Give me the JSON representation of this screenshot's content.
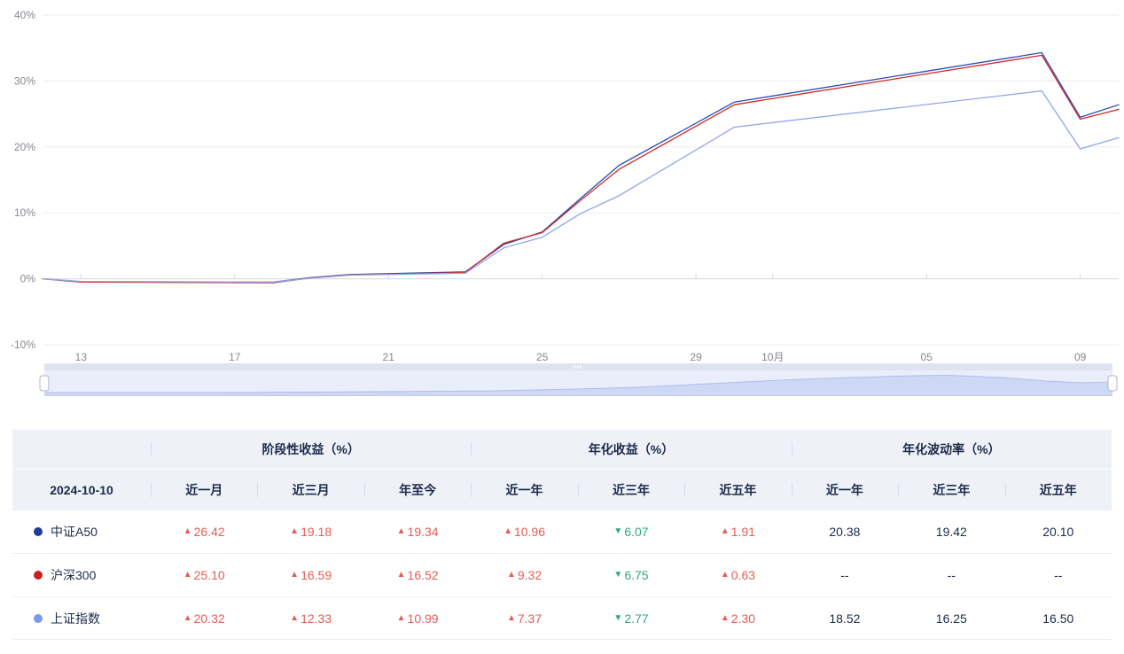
{
  "chart_data": {
    "type": "line",
    "title": "",
    "x": [
      "09-12",
      "09-13",
      "09-18",
      "09-19",
      "09-20",
      "09-23",
      "09-24",
      "09-25",
      "09-26",
      "09-27",
      "09-30",
      "10-08",
      "10-09",
      "10-10"
    ],
    "x_day_offsets": [
      0,
      1,
      6,
      7,
      8,
      11,
      12,
      13,
      14,
      15,
      18,
      26,
      27,
      28
    ],
    "series": [
      {
        "name": "中证A50",
        "color": "#2b4bb5",
        "values": [
          0,
          -0.45,
          -0.5,
          0.2,
          0.65,
          1.05,
          5.2,
          7.1,
          12.2,
          17.2,
          26.8,
          34.3,
          24.5,
          26.4
        ]
      },
      {
        "name": "沪深300",
        "color": "#cc2a25",
        "values": [
          0,
          -0.5,
          -0.6,
          0.15,
          0.6,
          0.95,
          5.4,
          7.0,
          11.9,
          16.6,
          26.4,
          33.9,
          24.2,
          25.7
        ]
      },
      {
        "name": "上证指数",
        "color": "#8fa6ec",
        "values": [
          0,
          -0.4,
          -0.5,
          0.1,
          0.55,
          0.85,
          4.7,
          6.3,
          9.9,
          12.6,
          23.0,
          28.5,
          19.7,
          21.4
        ]
      }
    ],
    "ylim": [
      -10,
      40
    ],
    "grid": true,
    "legend_position": "table-below",
    "y_ticks": [
      {
        "label": "40%",
        "value": 40
      },
      {
        "label": "30%",
        "value": 30
      },
      {
        "label": "20%",
        "value": 20
      },
      {
        "label": "10%",
        "value": 10
      },
      {
        "label": "0%",
        "value": 0
      },
      {
        "label": "-10%",
        "value": -10
      }
    ],
    "x_ticks": [
      {
        "label": "13",
        "day": 1
      },
      {
        "label": "17",
        "day": 5
      },
      {
        "label": "21",
        "day": 9
      },
      {
        "label": "25",
        "day": 13
      },
      {
        "label": "29",
        "day": 17
      },
      {
        "label": "10月",
        "day": 19
      },
      {
        "label": "05",
        "day": 23
      },
      {
        "label": "09",
        "day": 27
      }
    ]
  },
  "slider": {
    "shadow_profile": [
      [
        50,
        3
      ],
      [
        250,
        3
      ],
      [
        420,
        4
      ],
      [
        560,
        5
      ],
      [
        650,
        7
      ],
      [
        720,
        9
      ],
      [
        800,
        13
      ],
      [
        880,
        17
      ],
      [
        960,
        20
      ],
      [
        1030,
        22
      ],
      [
        1070,
        22.5
      ],
      [
        1130,
        20
      ],
      [
        1180,
        16
      ],
      [
        1220,
        14
      ],
      [
        1255,
        15
      ]
    ]
  },
  "table": {
    "date_header": "2024-10-10",
    "groups": [
      {
        "label": "阶段性收益（%）",
        "span": 3
      },
      {
        "label": "年化收益（%）",
        "span": 3
      },
      {
        "label": "年化波动率（%）",
        "span": 3
      }
    ],
    "columns": [
      "近一月",
      "近三月",
      "年至今",
      "近一年",
      "近三年",
      "近五年",
      "近一年",
      "近三年",
      "近五年"
    ],
    "rows": [
      {
        "name": "中证A50",
        "dot_color": "#1e3d96",
        "cells": [
          {
            "text": "26.42",
            "dir": "up"
          },
          {
            "text": "19.18",
            "dir": "up"
          },
          {
            "text": "19.34",
            "dir": "up"
          },
          {
            "text": "10.96",
            "dir": "up"
          },
          {
            "text": "6.07",
            "dir": "down"
          },
          {
            "text": "1.91",
            "dir": "up"
          },
          {
            "text": "20.38",
            "dir": "none"
          },
          {
            "text": "19.42",
            "dir": "none"
          },
          {
            "text": "20.10",
            "dir": "none"
          }
        ]
      },
      {
        "name": "沪深300",
        "dot_color": "#c32420",
        "cells": [
          {
            "text": "25.10",
            "dir": "up"
          },
          {
            "text": "16.59",
            "dir": "up"
          },
          {
            "text": "16.52",
            "dir": "up"
          },
          {
            "text": "9.32",
            "dir": "up"
          },
          {
            "text": "6.75",
            "dir": "down"
          },
          {
            "text": "0.63",
            "dir": "up"
          },
          {
            "text": "--",
            "dir": "none"
          },
          {
            "text": "--",
            "dir": "none"
          },
          {
            "text": "--",
            "dir": "none"
          }
        ]
      },
      {
        "name": "上证指数",
        "dot_color": "#7e97e8",
        "cells": [
          {
            "text": "20.32",
            "dir": "up"
          },
          {
            "text": "12.33",
            "dir": "up"
          },
          {
            "text": "10.99",
            "dir": "up"
          },
          {
            "text": "7.37",
            "dir": "up"
          },
          {
            "text": "2.77",
            "dir": "down"
          },
          {
            "text": "2.30",
            "dir": "up"
          },
          {
            "text": "18.52",
            "dir": "none"
          },
          {
            "text": "16.25",
            "dir": "none"
          },
          {
            "text": "16.50",
            "dir": "none"
          }
        ]
      }
    ],
    "up_marker": "▲",
    "down_marker": "▼"
  },
  "colors": {
    "up_text": "#e65c54",
    "down_text": "#2ea87e",
    "header_bg": "#eef1f8",
    "primary_text": "#1c2b4a",
    "axis_label": "#85888f",
    "gridline": "#ebedf3",
    "slider_fill": "#eaeefb",
    "slider_shadow": "#cdd8f4"
  }
}
